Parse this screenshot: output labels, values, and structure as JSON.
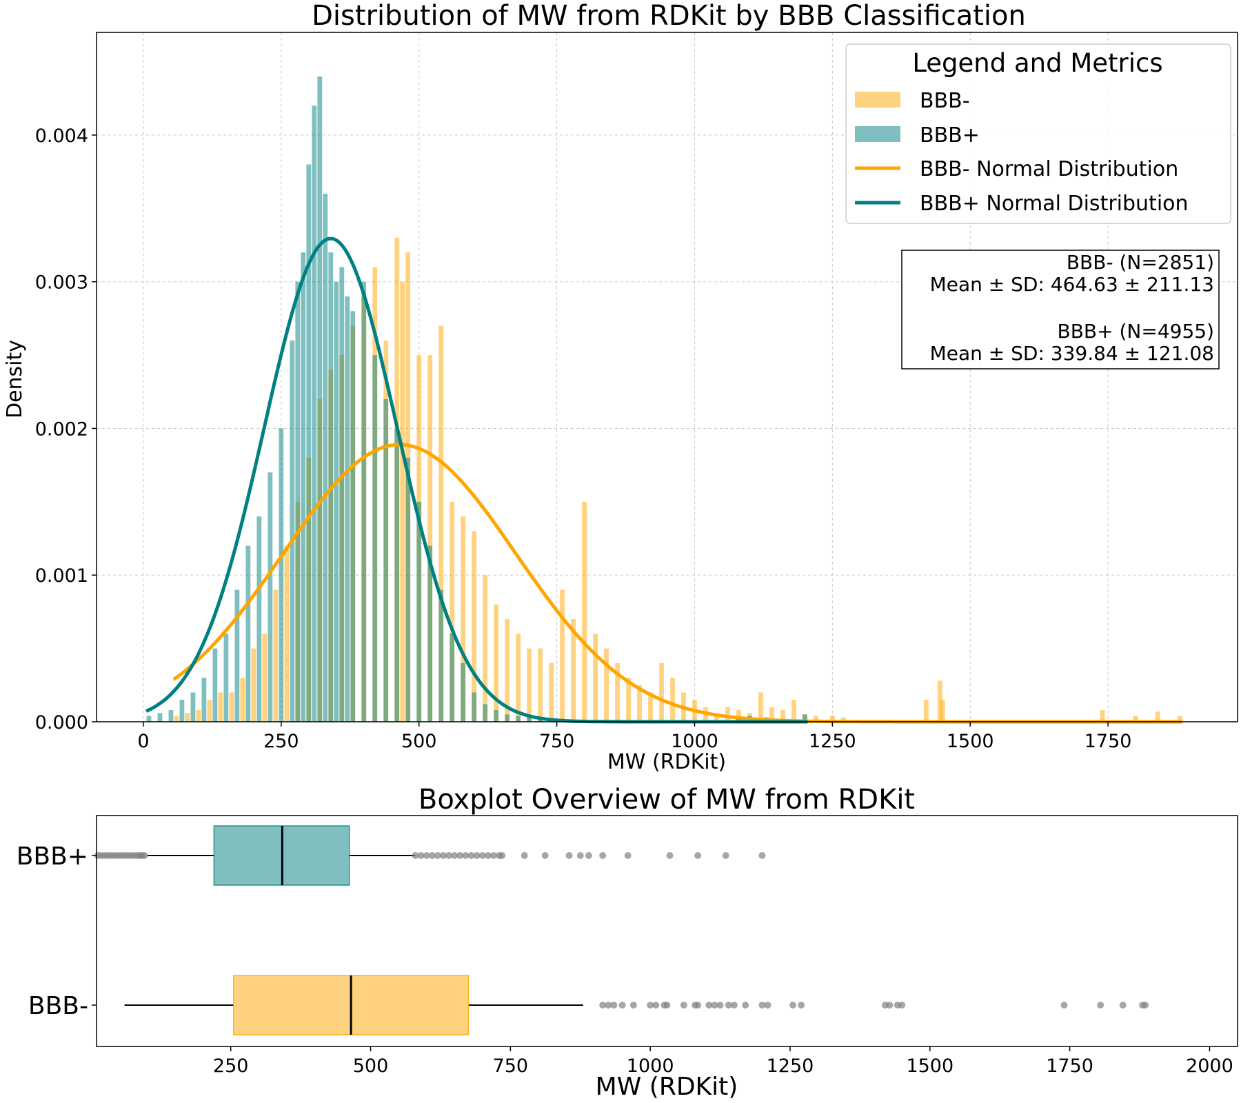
{
  "chart_data": [
    {
      "type": "histogram",
      "title": "Distribution of MW from RDKit by BBB Classification",
      "xlabel": "MW (RDKit)",
      "ylabel": "Density",
      "xlim": [
        -85,
        1985
      ],
      "ylim": [
        0,
        0.0047
      ],
      "xticks": [
        "0",
        "250",
        "500",
        "750",
        "1000",
        "1250",
        "1500",
        "1750"
      ],
      "xtick_values": [
        0,
        250,
        500,
        750,
        1000,
        1250,
        1500,
        1750
      ],
      "yticks": [
        "0.000",
        "0.001",
        "0.002",
        "0.003",
        "0.004"
      ],
      "ytick_values": [
        0,
        0.001,
        0.002,
        0.003,
        0.004
      ],
      "grid": true,
      "legend": {
        "title": "Legend and Metrics",
        "position": "top-right",
        "entries": [
          "BBB-",
          "BBB+",
          "BBB- Normal Distribution",
          "BBB+ Normal Distribution"
        ]
      },
      "metrics_box": {
        "lines": [
          "BBB- (N=2851)",
          "Mean ± SD: 464.63 ± 211.13",
          "",
          "BBB+ (N=4955)",
          "Mean ± SD: 339.84 ± 121.08"
        ]
      },
      "series": [
        {
          "name": "BBB-",
          "kind": "histogram",
          "color": "#FFA500",
          "alpha": 0.5,
          "bin_width": 8.5,
          "range": [
            55,
            1885
          ],
          "bars": [
            [
              60,
              4e-05
            ],
            [
              80,
              6e-05
            ],
            [
              100,
              8e-05
            ],
            [
              120,
              0.00015
            ],
            [
              140,
              0.0002
            ],
            [
              160,
              0.0002
            ],
            [
              180,
              0.0003
            ],
            [
              200,
              0.0005
            ],
            [
              220,
              0.0006
            ],
            [
              240,
              0.0009
            ],
            [
              260,
              0.0012
            ],
            [
              280,
              0.0015
            ],
            [
              300,
              0.0018
            ],
            [
              320,
              0.0022
            ],
            [
              340,
              0.0024
            ],
            [
              360,
              0.0025
            ],
            [
              380,
              0.0027
            ],
            [
              400,
              0.0029
            ],
            [
              420,
              0.0031
            ],
            [
              440,
              0.0026
            ],
            [
              460,
              0.0033
            ],
            [
              470,
              0.003
            ],
            [
              480,
              0.0032
            ],
            [
              500,
              0.0025
            ],
            [
              520,
              0.0025
            ],
            [
              540,
              0.0027
            ],
            [
              560,
              0.0015
            ],
            [
              580,
              0.0014
            ],
            [
              600,
              0.0013
            ],
            [
              620,
              0.001
            ],
            [
              640,
              0.0008
            ],
            [
              660,
              0.0007
            ],
            [
              680,
              0.0006
            ],
            [
              700,
              0.0005
            ],
            [
              720,
              0.0005
            ],
            [
              740,
              0.0004
            ],
            [
              760,
              0.0009
            ],
            [
              780,
              0.0007
            ],
            [
              800,
              0.0015
            ],
            [
              820,
              0.0006
            ],
            [
              840,
              0.0005
            ],
            [
              860,
              0.0004
            ],
            [
              880,
              0.0003
            ],
            [
              900,
              0.00025
            ],
            [
              920,
              0.0002
            ],
            [
              940,
              0.0004
            ],
            [
              960,
              0.0003
            ],
            [
              980,
              0.0002
            ],
            [
              1000,
              0.00015
            ],
            [
              1020,
              0.0001
            ],
            [
              1040,
              5e-05
            ],
            [
              1060,
              0.0001
            ],
            [
              1080,
              8e-05
            ],
            [
              1100,
              6e-05
            ],
            [
              1120,
              0.0002
            ],
            [
              1140,
              0.0001
            ],
            [
              1160,
              8e-05
            ],
            [
              1180,
              0.00015
            ],
            [
              1200,
              5e-05
            ],
            [
              1220,
              4e-05
            ],
            [
              1250,
              4e-05
            ],
            [
              1270,
              3e-05
            ],
            [
              1420,
              0.00015
            ],
            [
              1445,
              0.00028
            ],
            [
              1450,
              0.00015
            ],
            [
              1740,
              8e-05
            ],
            [
              1800,
              4e-05
            ],
            [
              1840,
              7e-05
            ],
            [
              1880,
              4e-05
            ]
          ]
        },
        {
          "name": "BBB+",
          "kind": "histogram",
          "color": "#008080",
          "alpha": 0.5,
          "bin_width": 8.5,
          "range": [
            5,
            1205
          ],
          "bars": [
            [
              10,
              4e-05
            ],
            [
              30,
              6e-05
            ],
            [
              50,
              8e-05
            ],
            [
              70,
              0.00015
            ],
            [
              90,
              0.0002
            ],
            [
              110,
              0.0003
            ],
            [
              130,
              0.0005
            ],
            [
              150,
              0.0006
            ],
            [
              170,
              0.0009
            ],
            [
              190,
              0.0012
            ],
            [
              210,
              0.0014
            ],
            [
              230,
              0.0017
            ],
            [
              250,
              0.002
            ],
            [
              270,
              0.0026
            ],
            [
              280,
              0.003
            ],
            [
              290,
              0.0032
            ],
            [
              300,
              0.0038
            ],
            [
              310,
              0.0042
            ],
            [
              320,
              0.0044
            ],
            [
              330,
              0.0036
            ],
            [
              340,
              0.0032
            ],
            [
              350,
              0.003
            ],
            [
              360,
              0.0031
            ],
            [
              370,
              0.0029
            ],
            [
              380,
              0.0028
            ],
            [
              400,
              0.003
            ],
            [
              420,
              0.0025
            ],
            [
              440,
              0.0022
            ],
            [
              460,
              0.002
            ],
            [
              480,
              0.0018
            ],
            [
              500,
              0.0015
            ],
            [
              520,
              0.0012
            ],
            [
              540,
              0.0009
            ],
            [
              560,
              0.0006
            ],
            [
              580,
              0.0004
            ],
            [
              600,
              0.0002
            ],
            [
              620,
              0.00012
            ],
            [
              640,
              8e-05
            ],
            [
              660,
              5e-05
            ],
            [
              680,
              4e-05
            ],
            [
              700,
              3e-05
            ],
            [
              720,
              2e-05
            ],
            [
              740,
              2e-05
            ],
            [
              760,
              1e-05
            ],
            [
              780,
              1e-05
            ],
            [
              800,
              1e-05
            ],
            [
              820,
              1e-05
            ],
            [
              860,
              1e-05
            ],
            [
              950,
              1e-05
            ],
            [
              1000,
              1e-05
            ],
            [
              1050,
              1e-05
            ],
            [
              1080,
              3e-05
            ],
            [
              1100,
              4e-05
            ],
            [
              1130,
              3e-05
            ],
            [
              1200,
              5e-05
            ]
          ]
        },
        {
          "name": "BBB- Normal Distribution",
          "kind": "line",
          "color": "#FFA500",
          "mean": 464.63,
          "sd": 211.13,
          "x_range": [
            55,
            1885
          ]
        },
        {
          "name": "BBB+ Normal Distribution",
          "kind": "line",
          "color": "#008080",
          "mean": 339.84,
          "sd": 121.08,
          "x_range": [
            5,
            1205
          ]
        }
      ]
    },
    {
      "type": "boxplot",
      "title": "Boxplot Overview of MW from RDKit",
      "xlabel": "MW (RDKit)",
      "xlim": [
        10,
        2050
      ],
      "xticks": [
        "250",
        "500",
        "750",
        "1000",
        "1250",
        "1500",
        "1750",
        "2000"
      ],
      "xtick_values": [
        250,
        500,
        750,
        1000,
        1250,
        1500,
        1750,
        2000
      ],
      "categories": [
        "BBB+",
        "BBB-"
      ],
      "boxes": [
        {
          "name": "BBB+",
          "color": "#008080",
          "alpha": 0.5,
          "whisker_low": 100,
          "q1": 220,
          "median": 342,
          "q3": 462,
          "whisker_high": 580,
          "outliers": [
            12,
            18,
            24,
            30,
            36,
            42,
            48,
            54,
            60,
            66,
            72,
            78,
            84,
            88,
            92,
            96,
            580,
            590,
            600,
            610,
            620,
            630,
            640,
            650,
            660,
            670,
            680,
            690,
            700,
            710,
            720,
            730,
            735,
            775,
            812,
            855,
            875,
            890,
            915,
            960,
            1035,
            1085,
            1135,
            1200
          ]
        },
        {
          "name": "BBB-",
          "color": "#FFA500",
          "alpha": 0.5,
          "whisker_low": 60,
          "q1": 255,
          "median": 465,
          "q3": 675,
          "whisker_high": 880,
          "outliers": [
            915,
            925,
            935,
            950,
            970,
            1000,
            1010,
            1025,
            1030,
            1060,
            1080,
            1085,
            1105,
            1115,
            1125,
            1140,
            1150,
            1170,
            1200,
            1210,
            1255,
            1270,
            1420,
            1428,
            1442,
            1450,
            1740,
            1805,
            1845,
            1880,
            1885
          ]
        }
      ]
    }
  ]
}
